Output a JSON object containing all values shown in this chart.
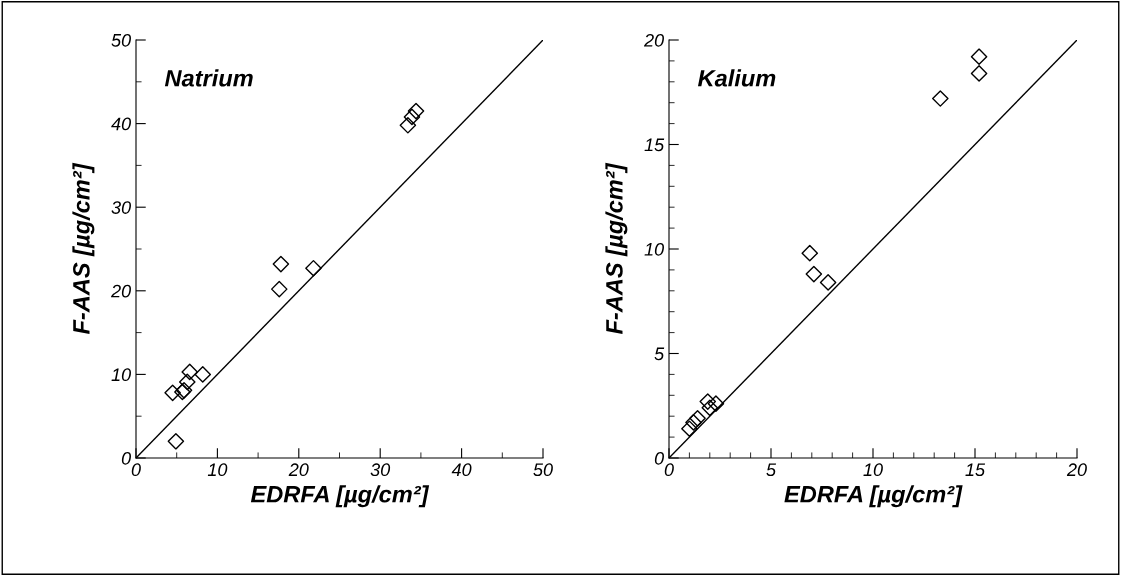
{
  "chart_data": [
    {
      "type": "scatter",
      "title": "Natrium",
      "xlabel": "EDRFA [µg/cm²]",
      "ylabel": "F-AAS [µg/cm²]",
      "xlim": [
        0,
        50
      ],
      "ylim": [
        0,
        50
      ],
      "grid": false,
      "legend": false,
      "xticks": [
        0,
        {
          "value": 5,
          "label": null
        },
        10,
        {
          "value": 15,
          "label": null
        },
        20,
        {
          "value": 25,
          "label": null
        },
        30,
        {
          "value": 35,
          "label": null
        },
        40,
        {
          "value": 45,
          "label": null
        },
        50
      ],
      "yticks": [
        0,
        {
          "value": 5,
          "label": null
        },
        10,
        {
          "value": 15,
          "label": null
        },
        20,
        {
          "value": 25,
          "label": null
        },
        30,
        {
          "value": 35,
          "label": null
        },
        40,
        {
          "value": 45,
          "label": null
        },
        50
      ],
      "series": [
        {
          "marker": "diamond",
          "color": "#000000",
          "x": [
            4.5,
            4.9,
            5.7,
            5.9,
            6.3,
            6.6,
            8.2,
            17.6,
            17.8,
            21.8,
            33.4,
            33.9,
            34.4
          ],
          "values": [
            7.8,
            2.0,
            7.9,
            8.1,
            9.1,
            10.3,
            10.0,
            20.2,
            23.2,
            22.7,
            39.8,
            40.8,
            41.5
          ]
        },
        {
          "type": "line",
          "color": "#000000",
          "x": [
            0,
            50
          ],
          "values": [
            0,
            50
          ]
        }
      ]
    },
    {
      "type": "scatter",
      "title": "Kalium",
      "xlabel": "EDRFA [µg/cm²]",
      "ylabel": "F-AAS [µg/cm²]",
      "xlim": [
        0,
        20
      ],
      "ylim": [
        0,
        20
      ],
      "grid": false,
      "legend": false,
      "xticks": [
        0,
        {
          "value": 1,
          "label": null
        },
        {
          "value": 2,
          "label": null
        },
        {
          "value": 3,
          "label": null
        },
        {
          "value": 4,
          "label": null
        },
        5,
        {
          "value": 6,
          "label": null
        },
        {
          "value": 7,
          "label": null
        },
        {
          "value": 8,
          "label": null
        },
        {
          "value": 9,
          "label": null
        },
        10,
        {
          "value": 11,
          "label": null
        },
        {
          "value": 12,
          "label": null
        },
        {
          "value": 13,
          "label": null
        },
        {
          "value": 14,
          "label": null
        },
        15,
        {
          "value": 16,
          "label": null
        },
        {
          "value": 17,
          "label": null
        },
        {
          "value": 18,
          "label": null
        },
        {
          "value": 19,
          "label": null
        },
        20
      ],
      "yticks": [
        0,
        {
          "value": 1,
          "label": null
        },
        {
          "value": 2,
          "label": null
        },
        {
          "value": 3,
          "label": null
        },
        {
          "value": 4,
          "label": null
        },
        5,
        {
          "value": 6,
          "label": null
        },
        {
          "value": 7,
          "label": null
        },
        {
          "value": 8,
          "label": null
        },
        {
          "value": 9,
          "label": null
        },
        10,
        {
          "value": 11,
          "label": null
        },
        {
          "value": 12,
          "label": null
        },
        {
          "value": 13,
          "label": null
        },
        {
          "value": 14,
          "label": null
        },
        15,
        {
          "value": 16,
          "label": null
        },
        {
          "value": 17,
          "label": null
        },
        {
          "value": 18,
          "label": null
        },
        {
          "value": 19,
          "label": null
        },
        20
      ],
      "series": [
        {
          "marker": "diamond",
          "color": "#000000",
          "x": [
            1.0,
            1.2,
            1.4,
            1.9,
            2.0,
            2.3,
            6.9,
            7.1,
            7.8,
            13.3,
            15.2,
            15.2
          ],
          "values": [
            1.4,
            1.7,
            1.9,
            2.7,
            2.4,
            2.6,
            9.8,
            8.8,
            8.4,
            17.2,
            18.4,
            19.2
          ]
        },
        {
          "type": "line",
          "color": "#000000",
          "x": [
            0,
            20
          ],
          "values": [
            0,
            20
          ]
        }
      ]
    }
  ]
}
